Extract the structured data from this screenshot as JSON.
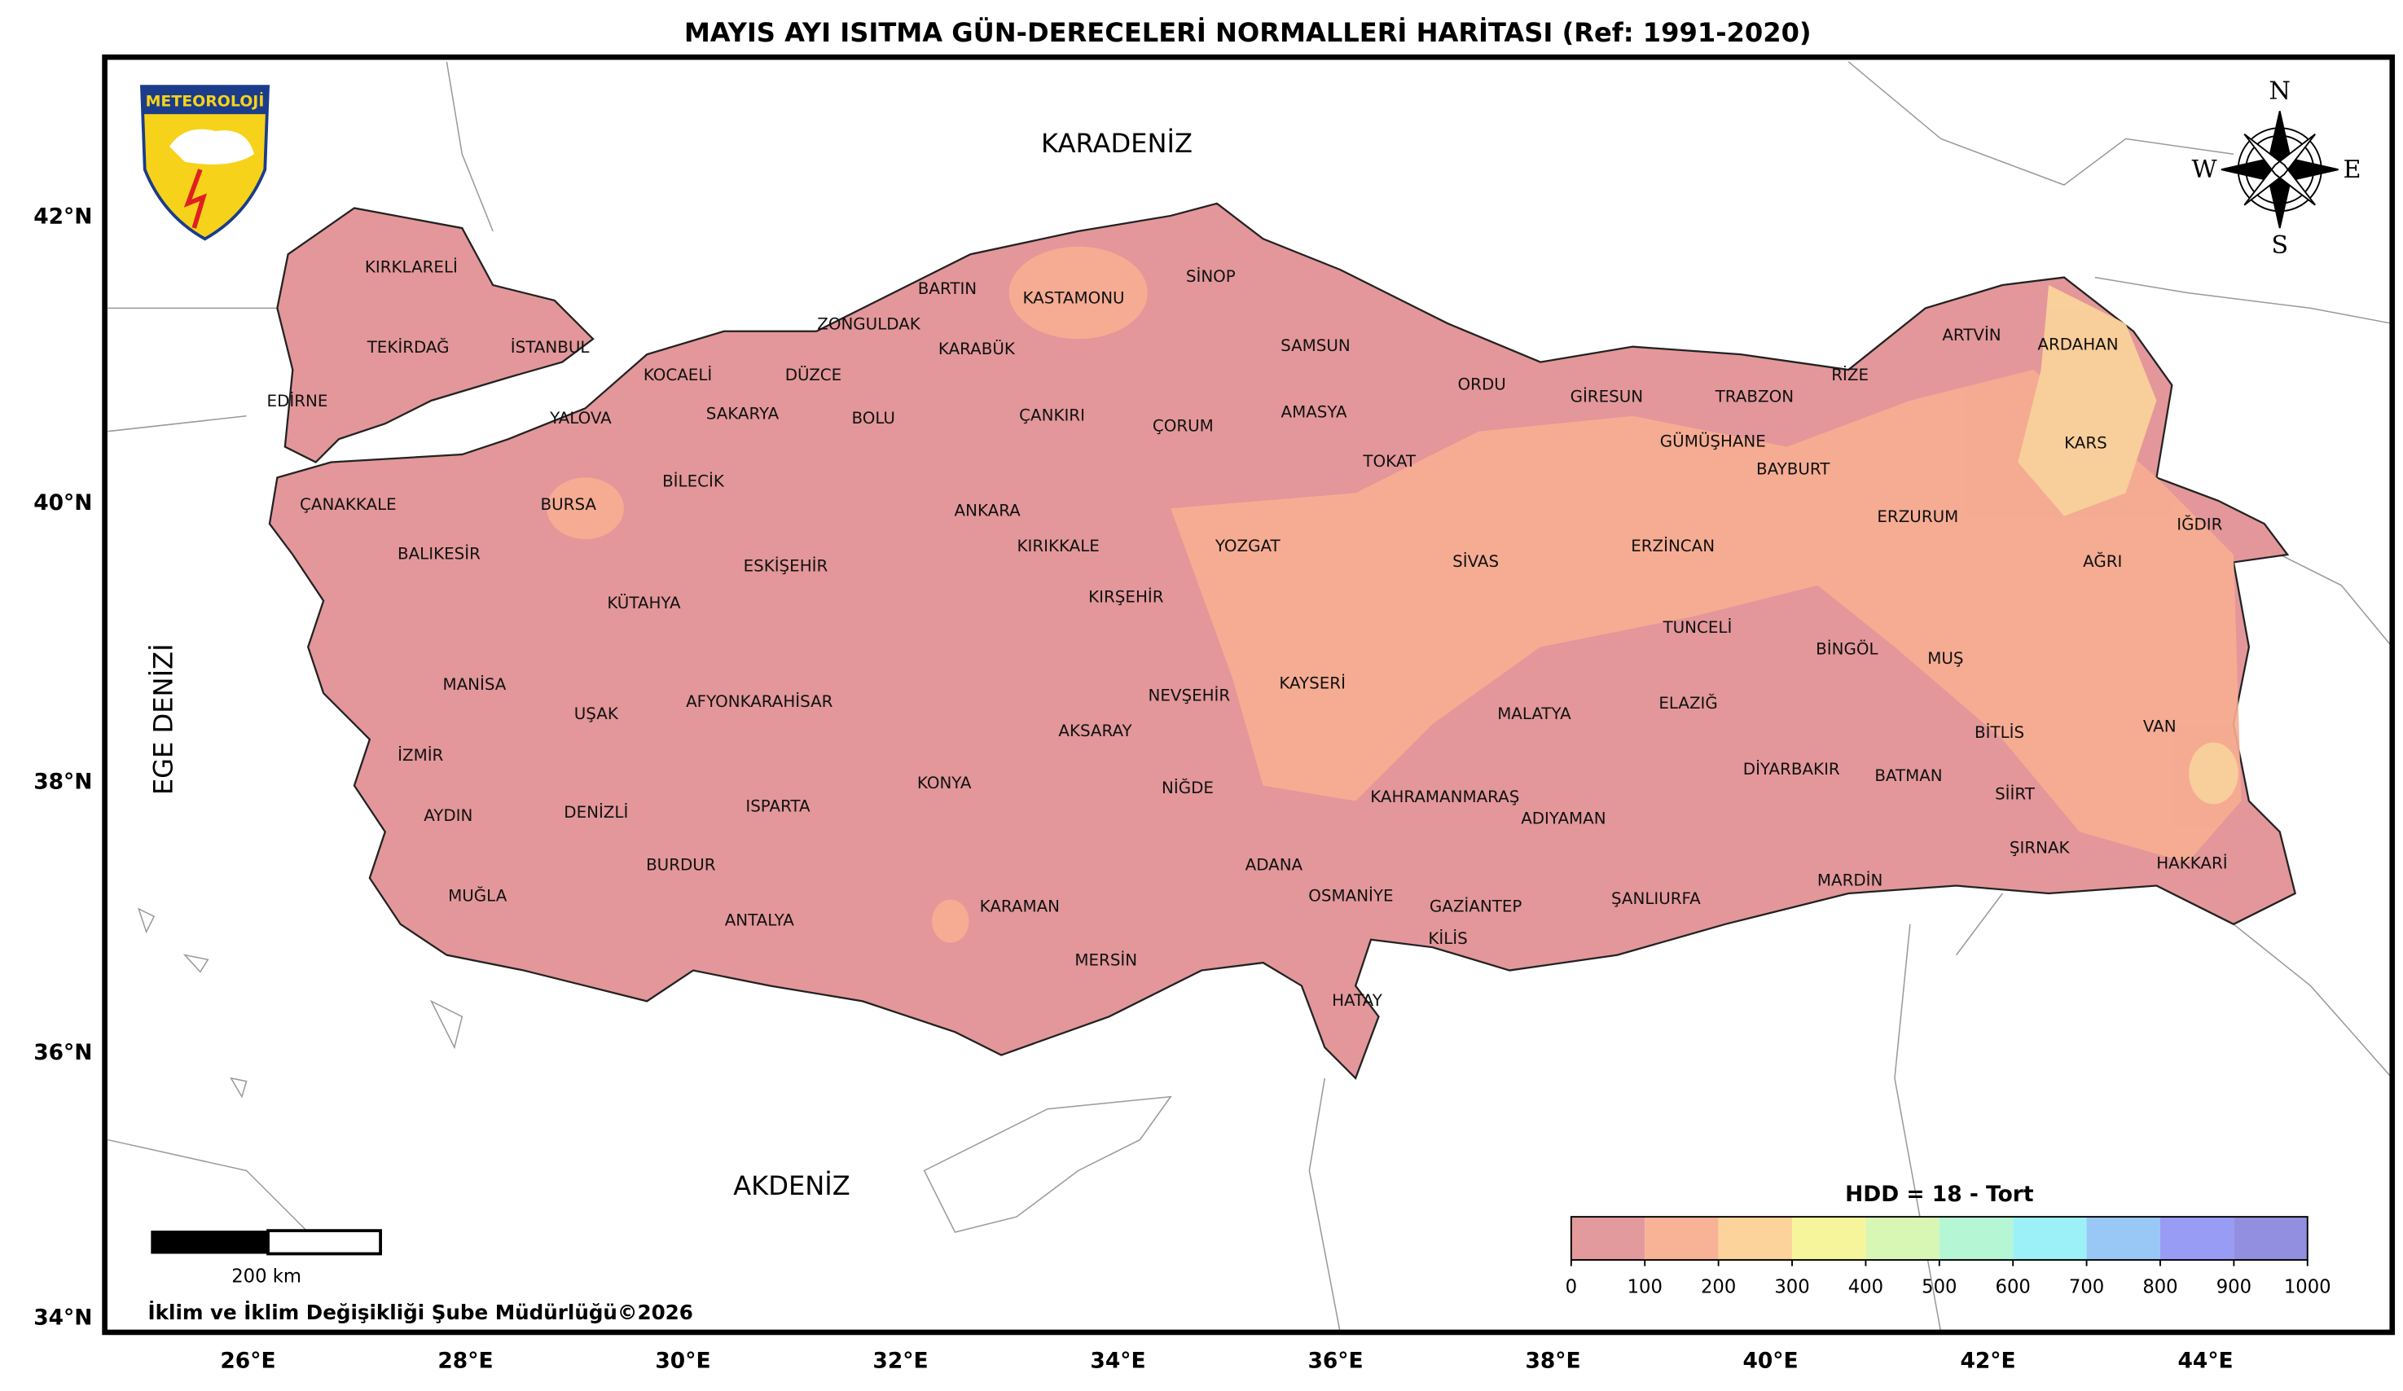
{
  "title": "MAYIS AYI ISITMA GÜN-DERECELERİ NORMALLERİ HARİTASI (Ref: 1991-2020)",
  "logo_text": "METEOROLOJİ",
  "seas": [
    "KARADENİZ",
    "AKDENİZ",
    "EGE DENİZİ"
  ],
  "lat_labels": [
    "42°N",
    "40°N",
    "38°N",
    "36°N",
    "34°N"
  ],
  "lon_labels": [
    "26°E",
    "28°E",
    "30°E",
    "32°E",
    "34°E",
    "36°E",
    "38°E",
    "40°E",
    "42°E",
    "44°E"
  ],
  "compass": [
    "N",
    "E",
    "S",
    "W"
  ],
  "provinces": [
    "KIRKLARELİ",
    "TEKİRDAĞ",
    "İSTANBUL",
    "EDİRNE",
    "YALOVA",
    "KOCAELİ",
    "SAKARYA",
    "DÜZCE",
    "ZONGULDAK",
    "BARTIN",
    "KARABÜK",
    "KASTAMONU",
    "SİNOP",
    "SAMSUN",
    "AMASYA",
    "ÇORUM",
    "ÇANKIRI",
    "BOLU",
    "BİLECİK",
    "BURSA",
    "ÇANAKKALE",
    "BALIKESİR",
    "KÜTAHYA",
    "ESKİŞEHİR",
    "ANKARA",
    "KIRIKKALE",
    "YOZGAT",
    "KIRŞEHİR",
    "TOKAT",
    "ORDU",
    "GİRESUN",
    "TRABZON",
    "RİZE",
    "ARTVİN",
    "ARDAHAN",
    "KARS",
    "GÜMÜŞHANE",
    "BAYBURT",
    "ERZURUM",
    "ERZİNCAN",
    "SİVAS",
    "IĞDIR",
    "AĞRI",
    "TUNCELİ",
    "BİNGÖL",
    "MUŞ",
    "ELAZIĞ",
    "MALATYA",
    "KAYSERİ",
    "NEVŞEHİR",
    "AKSARAY",
    "NİĞDE",
    "KONYA",
    "AFYONKARAHİSAR",
    "UŞAK",
    "MANİSA",
    "İZMİR",
    "AYDIN",
    "DENİZLİ",
    "MUĞLA",
    "BURDUR",
    "ISPARTA",
    "ANTALYA",
    "KARAMAN",
    "MERSİN",
    "ADANA",
    "OSMANİYE",
    "HATAY",
    "GAZİANTEP",
    "KİLİS",
    "KAHRAMANMARAŞ",
    "ADIYAMAN",
    "ŞANLIURFA",
    "DİYARBAKIR",
    "BATMAN",
    "SİİRT",
    "ŞIRNAK",
    "MARDİN",
    "BİTLİS",
    "VAN",
    "HAKKARİ"
  ],
  "legend": {
    "title": "HDD = 18 - Tort",
    "ticks": [
      0,
      100,
      200,
      300,
      400,
      500,
      600,
      700,
      800,
      900,
      1000
    ],
    "colors": [
      "#e39a9c",
      "#f8b397",
      "#fcd39b",
      "#f7f59c",
      "#d9f7b4",
      "#b5f7d5",
      "#9cf1f8",
      "#9ac8f6",
      "#999cf5",
      "#938fe0"
    ]
  },
  "scale_bar": "200 km",
  "credit": "İklim ve İklim Değişikliği Şube Müdürlüğü©2026"
}
